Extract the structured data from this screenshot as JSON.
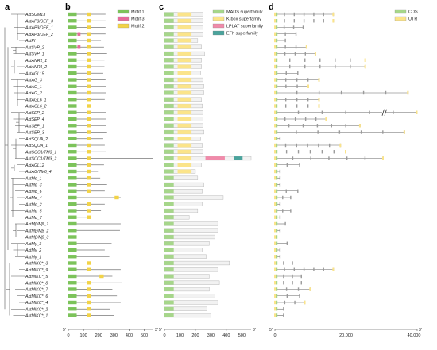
{
  "panels": [
    "a",
    "b",
    "c",
    "d"
  ],
  "genes": [
    "AktSGM13",
    "AktAP3/DEF_3",
    "AktAP3/DEF_1",
    "AktAP3/DEF_2",
    "AktPI",
    "AktSVP_2",
    "AktSVP_1",
    "AktANR1_1",
    "AktANR1_2",
    "AktAGL15",
    "AktAG_3",
    "AktAG_1",
    "AktAG_2",
    "AktAGL6_1",
    "AktAGL6_2",
    "AktSEP_2",
    "AktSEP_4",
    "AktSEP_1",
    "AktSEP_3",
    "AktSQUA_2",
    "AktSQUA_1",
    "AktSOC1/TM3_1",
    "AktSOC1/TM3_2",
    "AktAGL12",
    "AktAG/TM6_4",
    "AktMα_1",
    "AktMα_3",
    "AktMα_6",
    "AktMα_4",
    "AktMα_2",
    "AktMα_5",
    "AktMα_7",
    "AktMβ/Mβ_1",
    "AktMβ/Mβ_2",
    "AktMβ/Mβ_3",
    "AktMγ_3",
    "AktMγ_2",
    "AktMγ_1",
    "AktMIKC*_3",
    "AktMIKC*_9",
    "AktMIKC*_5",
    "AktMIKC*_8",
    "AktMIKC*_7",
    "AktMIKC*_6",
    "AktMIKC*_4",
    "AktMIKC*_2",
    "AktMIKC*_1"
  ],
  "motif_panel": {
    "legend": [
      {
        "label": "Motif 1",
        "color": "#7cc35a"
      },
      {
        "label": "Motif 3",
        "color": "#e46b9b"
      },
      {
        "label": "Motif 2",
        "color": "#f2d347"
      }
    ],
    "axis": {
      "start_label": "5'",
      "end_label": "3'",
      "ticks": [
        0,
        100,
        200,
        300,
        400,
        500
      ],
      "max": 560
    },
    "lengths": [
      245,
      245,
      245,
      245,
      215,
      235,
      255,
      238,
      238,
      230,
      245,
      250,
      250,
      240,
      240,
      250,
      250,
      250,
      255,
      230,
      240,
      250,
      560,
      235,
      195,
      210,
      255,
      240,
      345,
      240,
      215,
      150,
      345,
      340,
      325,
      285,
      240,
      270,
      420,
      345,
      290,
      355,
      290,
      320,
      345,
      275,
      300
    ],
    "motif1_genes_without": [],
    "motif2_positions": [
      [
        125,
        150
      ]
    ]
  },
  "domain_panel": {
    "legend": [
      {
        "label": "MADS superfamily",
        "color": "#a6d68a"
      },
      {
        "label": "K-box superfamily",
        "color": "#fbe48a"
      },
      {
        "label": "LPLAT superfamily",
        "color": "#f08aaa"
      },
      {
        "label": "EFh superfamily",
        "color": "#4aa39c"
      }
    ],
    "axis": {
      "start_label": "5'",
      "end_label": "3'",
      "ticks": [
        0,
        100,
        200,
        300,
        400,
        500
      ],
      "max": 560
    },
    "lengths": [
      250,
      250,
      250,
      250,
      215,
      240,
      260,
      240,
      240,
      235,
      250,
      255,
      255,
      240,
      245,
      250,
      250,
      250,
      255,
      235,
      245,
      250,
      560,
      240,
      200,
      215,
      255,
      245,
      380,
      245,
      215,
      160,
      345,
      345,
      325,
      290,
      245,
      270,
      420,
      345,
      290,
      355,
      290,
      325,
      345,
      275,
      300
    ],
    "kbox_genes": 25,
    "lplat_range": [
      265,
      390
    ],
    "efh_range": [
      450,
      505
    ]
  },
  "structure_panel": {
    "legend": [
      {
        "label": "CDS",
        "color": "#a6d68a"
      },
      {
        "label": "UTR",
        "color": "#fbe48a"
      }
    ],
    "axis": {
      "start_label": "5'",
      "end_label": "3'",
      "ticks": [
        "0",
        "20,000",
        "40,000"
      ],
      "max": 40000
    },
    "lengths": [
      16500,
      16500,
      8000,
      6000,
      3000,
      9000,
      11500,
      25500,
      25500,
      6500,
      12500,
      9500,
      37500,
      12500,
      12500,
      40000,
      14500,
      24000,
      36500,
      1500,
      18500,
      20000,
      30500,
      7000,
      1500,
      1500,
      1500,
      6500,
      4500,
      1500,
      4500,
      1500,
      3000,
      1500,
      500,
      3500,
      1500,
      1500,
      5000,
      16500,
      7500,
      7500,
      10000,
      7000,
      8500,
      2500,
      2500
    ],
    "break_gene": 15
  }
}
